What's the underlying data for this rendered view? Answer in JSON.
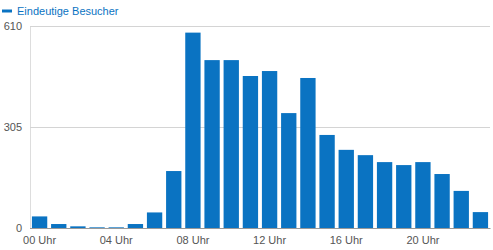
{
  "chart_data": {
    "type": "bar",
    "categories": [
      "00 Uhr",
      null,
      null,
      null,
      "04 Uhr",
      null,
      null,
      null,
      "08 Uhr",
      null,
      null,
      null,
      "12 Uhr",
      null,
      null,
      null,
      "16 Uhr",
      null,
      null,
      null,
      "20 Uhr",
      null,
      null,
      null
    ],
    "series": [
      {
        "name": "Eindeutige Besucher",
        "color": "#0a73c2",
        "values": [
          35,
          12,
          5,
          2,
          2,
          12,
          47,
          172,
          590,
          507,
          507,
          459,
          474,
          347,
          453,
          281,
          236,
          220,
          199,
          190,
          199,
          163,
          112,
          48
        ]
      }
    ],
    "ylim": [
      0,
      610
    ],
    "yticks": [
      0,
      305,
      610
    ],
    "grid": true,
    "legend": "top-left"
  }
}
